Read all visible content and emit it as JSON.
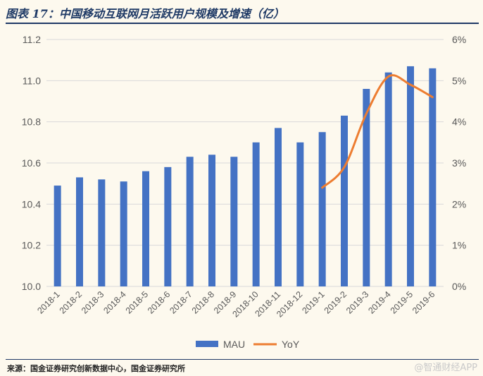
{
  "header": {
    "title": "图表 17：中国移动互联网月活跃用户规模及增速（亿）"
  },
  "footer": {
    "source": "来源：国金证券研究创新数据中心，国金证券研究所",
    "watermark": "@智通财经APP"
  },
  "colors": {
    "bar": "#4472c4",
    "line": "#ed7d31",
    "grid": "#d9d9d9",
    "header_rule": "#1f3a66"
  },
  "chart_data": {
    "type": "bar",
    "title": "",
    "xlabel": "",
    "ylabel": "",
    "categories": [
      "2018-1",
      "2018-2",
      "2018-3",
      "2018-4",
      "2018-5",
      "2018-6",
      "2018-7",
      "2018-8",
      "2018-9",
      "2018-10",
      "2018-11",
      "2018-12",
      "2019-1",
      "2019-2",
      "2019-3",
      "2019-4",
      "2019-5",
      "2019-6"
    ],
    "series": [
      {
        "name": "MAU",
        "type": "bar",
        "axis": "left",
        "values": [
          10.49,
          10.53,
          10.52,
          10.51,
          10.56,
          10.58,
          10.63,
          10.64,
          10.63,
          10.7,
          10.77,
          10.7,
          10.75,
          10.83,
          10.96,
          11.04,
          11.07,
          11.06
        ]
      },
      {
        "name": "YoY",
        "type": "line",
        "axis": "right",
        "values": [
          null,
          null,
          null,
          null,
          null,
          null,
          null,
          null,
          null,
          null,
          null,
          null,
          2.4,
          2.9,
          4.2,
          5.1,
          4.9,
          4.6
        ]
      }
    ],
    "ylim": [
      10.0,
      11.2
    ],
    "yticks": [
      "10.0",
      "10.2",
      "10.4",
      "10.6",
      "10.8",
      "11.0",
      "11.2"
    ],
    "y2lim": [
      0,
      6
    ],
    "y2ticks": [
      "0%",
      "1%",
      "2%",
      "3%",
      "4%",
      "5%",
      "6%"
    ],
    "grid": true,
    "legend_position": "bottom"
  }
}
